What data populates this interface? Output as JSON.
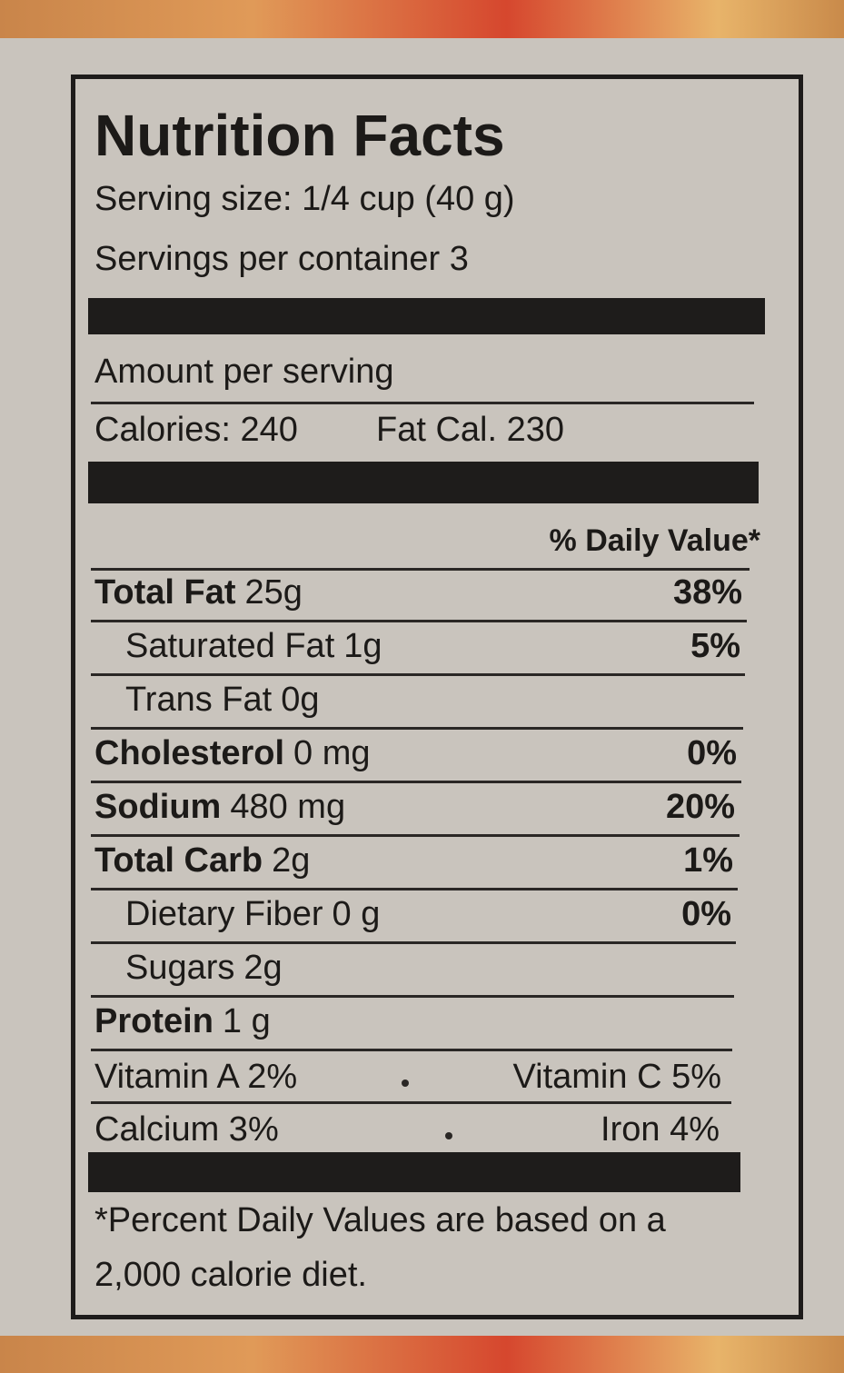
{
  "title": "Nutrition Facts",
  "serving_size": "Serving size: 1/4 cup (40 g)",
  "servings_per_container": "Servings per container  3",
  "amount_per_serving": "Amount per serving",
  "calories": "Calories: 240",
  "fat_calories": "Fat Cal.  230",
  "daily_value_header": "% Daily Value*",
  "nutrients": [
    {
      "name": "Total Fat",
      "amount": "25g",
      "dv": "38%",
      "bold": true,
      "indent": false
    },
    {
      "name": "Saturated Fat",
      "amount": "1g",
      "dv": "5%",
      "bold": false,
      "indent": true
    },
    {
      "name": "Trans Fat",
      "amount": "0g",
      "bold": false,
      "indent": true
    },
    {
      "name": "Cholesterol",
      "amount": "0 mg",
      "dv": "0%",
      "bold": true,
      "indent": false
    },
    {
      "name": "Sodium",
      "amount": "480 mg",
      "dv": "20%",
      "bold": true,
      "indent": false
    },
    {
      "name": "Total Carb",
      "amount": "2g",
      "dv": "1%",
      "bold": true,
      "indent": false
    },
    {
      "name": "Dietary Fiber",
      "amount": "0 g",
      "dv": "0%",
      "bold": false,
      "indent": true
    },
    {
      "name": "Sugars",
      "amount": "2g",
      "bold": false,
      "indent": true
    },
    {
      "name": "Protein",
      "amount": "1 g",
      "bold": true,
      "indent": false
    }
  ],
  "vitamins": [
    {
      "left": "Vitamin A 2%",
      "right": "Vitamin C 5%"
    },
    {
      "left": "Calcium  3%",
      "right": "Iron  4%"
    }
  ],
  "footnote": [
    "*Percent Daily Values are based on a",
    "2,000 calorie diet."
  ]
}
